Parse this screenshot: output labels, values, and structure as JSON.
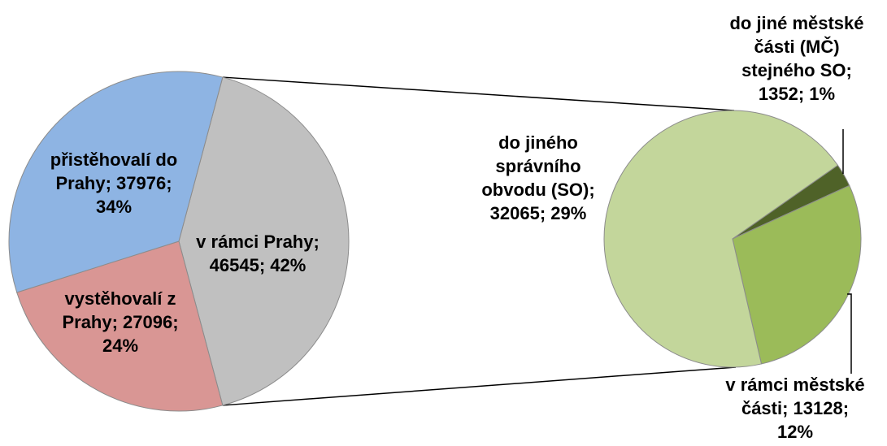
{
  "chart_data": {
    "type": "pie",
    "title": "",
    "main_pie": {
      "slices": [
        {
          "label": "v rámci Prahy",
          "value": 46545,
          "percent": "42%",
          "color": "#c0c0c0",
          "text_lines": [
            "v rámci Prahy;",
            "46545; 42%"
          ]
        },
        {
          "label": "vystěhovalí z Prahy",
          "value": 27096,
          "percent": "24%",
          "color": "#d99694",
          "text_lines": [
            "vystěhovalí z",
            "Prahy; 27096;",
            "24%"
          ]
        },
        {
          "label": "přistěhovalí do Prahy",
          "value": 37976,
          "percent": "34%",
          "color": "#8eb4e3",
          "text_lines": [
            "přistěhovalí do",
            "Prahy; 37976;",
            "34%"
          ]
        }
      ]
    },
    "breakdown_pie": {
      "of_slice": "v rámci Prahy",
      "slices": [
        {
          "label": "do jiné městské části (MČ) stejného SO",
          "value": 1352,
          "percent": "1%",
          "color": "#4f6228",
          "text_lines": [
            "do jiné městské",
            "části (MČ)",
            "stejného SO;",
            "1352; 1%"
          ]
        },
        {
          "label": "v rámci městské části",
          "value": 13128,
          "percent": "12%",
          "color": "#9bbb59",
          "text_lines": [
            "v rámci městské",
            "části; 13128;",
            "12%"
          ]
        },
        {
          "label": "do jiného správního obvodu (SO)",
          "value": 32065,
          "percent": "29%",
          "color": "#c3d69b",
          "text_lines": [
            "do jiného",
            "správního",
            "obvodu (SO);",
            "32065; 29%"
          ]
        }
      ]
    }
  }
}
